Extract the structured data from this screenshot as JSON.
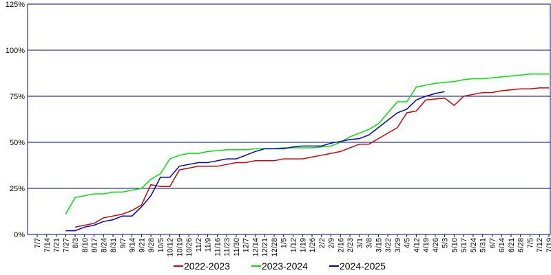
{
  "chart_data": {
    "type": "line",
    "categories": [
      "7/7",
      "7/14",
      "7/21",
      "7/27",
      "8/3",
      "8/10",
      "8/17",
      "8/24",
      "8/31",
      "9/7",
      "9/14",
      "9/21",
      "9/28",
      "10/5",
      "10/12",
      "10/19",
      "10/26",
      "11/2",
      "11/9",
      "11/16",
      "11/23",
      "11/30",
      "12/7",
      "12/14",
      "12/21",
      "12/28",
      "1/5",
      "1/12",
      "1/19",
      "1/26",
      "2/2",
      "2/9",
      "2/16",
      "2/23",
      "3/1",
      "3/8",
      "3/15",
      "3/22",
      "3/29",
      "4/5",
      "4/12",
      "4/19",
      "4/26",
      "5/3",
      "5/10",
      "5/17",
      "5/24",
      "5/31",
      "6/7",
      "6/14",
      "6/21",
      "6/28",
      "7/5",
      "7/12",
      "7/19"
    ],
    "series": [
      {
        "name": "2022-2023",
        "color": "#d00000",
        "values": [
          null,
          null,
          null,
          null,
          4,
          5,
          6,
          9,
          10,
          11,
          13,
          16,
          27,
          26,
          26,
          35,
          36,
          37,
          37,
          37,
          38,
          39,
          39,
          40,
          40,
          40,
          41,
          41,
          41,
          42,
          43,
          44,
          45,
          47,
          49,
          49,
          52,
          55,
          58,
          66,
          67,
          73,
          73.5,
          74,
          70,
          75,
          76,
          77,
          77,
          78,
          78.5,
          79,
          79,
          79.5,
          79.5
        ]
      },
      {
        "name": "2023-2024",
        "color": "#00e000",
        "values": [
          null,
          null,
          null,
          11,
          20,
          21,
          22,
          22,
          23,
          23,
          24,
          25,
          30,
          33,
          41,
          43,
          44,
          44,
          45,
          45.5,
          46,
          46,
          46,
          46.5,
          46.5,
          46.5,
          47,
          47,
          47,
          47,
          47.5,
          48,
          50,
          53,
          55,
          57,
          60,
          66,
          72,
          72,
          80,
          81,
          82,
          82.5,
          83,
          84,
          84.5,
          84.5,
          85,
          85.5,
          86,
          86.5,
          87,
          87,
          87
        ]
      },
      {
        "name": "2024-2025",
        "color": "#0000c0",
        "values": [
          null,
          null,
          null,
          2,
          2,
          4,
          5,
          7,
          8,
          10,
          10,
          15,
          21,
          31,
          31,
          37,
          38,
          39,
          39,
          40,
          41,
          41,
          43,
          45,
          46.5,
          46.5,
          46.5,
          47.5,
          48,
          48,
          48,
          49.5,
          50.5,
          51.5,
          52,
          54,
          58,
          62,
          66,
          68,
          73,
          75,
          76.5,
          77.5,
          null,
          null,
          null,
          null,
          null,
          null,
          null,
          null,
          null,
          null,
          null
        ]
      }
    ],
    "ylim": [
      0,
      125
    ],
    "yticks": [
      {
        "value": 0,
        "label": "0%"
      },
      {
        "value": 25,
        "label": "25%"
      },
      {
        "value": 50,
        "label": "50%"
      },
      {
        "value": 75,
        "label": "75%"
      },
      {
        "value": 100,
        "label": "100%"
      },
      {
        "value": 125,
        "label": "125%"
      }
    ],
    "grid": true,
    "legend": "bottom"
  }
}
